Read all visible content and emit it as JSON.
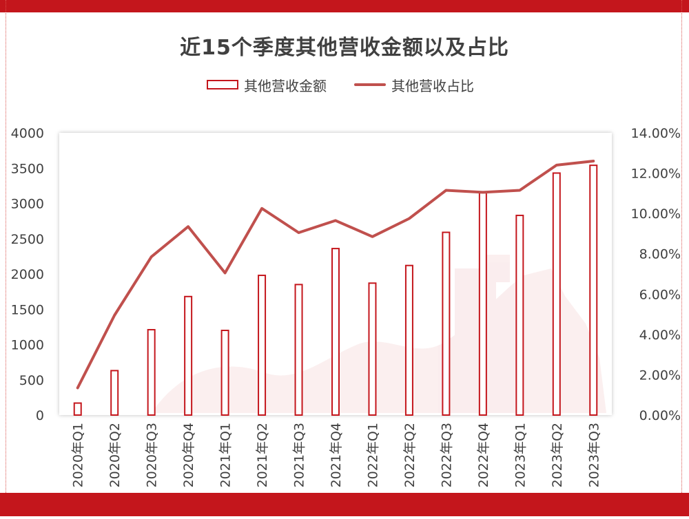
{
  "chart_data": {
    "type": "bar+line",
    "title": "近15个季度其他营收金额以及占比",
    "categories": [
      "2020年Q1",
      "2020年Q2",
      "2020年Q3",
      "2020年Q4",
      "2021年Q1",
      "2021年Q2",
      "2021年Q3",
      "2021年Q4",
      "2022年Q1",
      "2022年Q2",
      "2022年Q3",
      "2022年Q4",
      "2023年Q1",
      "2023年Q2",
      "2023年Q3"
    ],
    "series": [
      {
        "name": "其他营收金额",
        "type": "bar",
        "axis": "left",
        "values": [
          170,
          630,
          1210,
          1680,
          1200,
          1980,
          1850,
          2360,
          1870,
          2120,
          2590,
          3150,
          2830,
          3430,
          3540
        ]
      },
      {
        "name": "其他营收占比",
        "type": "line",
        "axis": "right",
        "values": [
          1.35,
          4.95,
          7.85,
          9.35,
          7.05,
          10.25,
          9.05,
          9.65,
          8.85,
          9.75,
          11.15,
          11.05,
          11.15,
          12.4,
          12.6
        ]
      }
    ],
    "y_left": {
      "ylim": [
        0,
        4000
      ],
      "ticks": [
        "0",
        "500",
        "1000",
        "1500",
        "2000",
        "2500",
        "3000",
        "3500",
        "4000"
      ]
    },
    "y_right": {
      "ylim": [
        0,
        14
      ],
      "ticks": [
        "0.00%",
        "2.00%",
        "4.00%",
        "6.00%",
        "8.00%",
        "10.00%",
        "12.00%",
        "14.00%"
      ]
    },
    "legend_position": "top",
    "grid": false,
    "colors": {
      "bar_stroke": "#c4161c",
      "line": "#c0504d",
      "band": "#c4161c"
    }
  }
}
